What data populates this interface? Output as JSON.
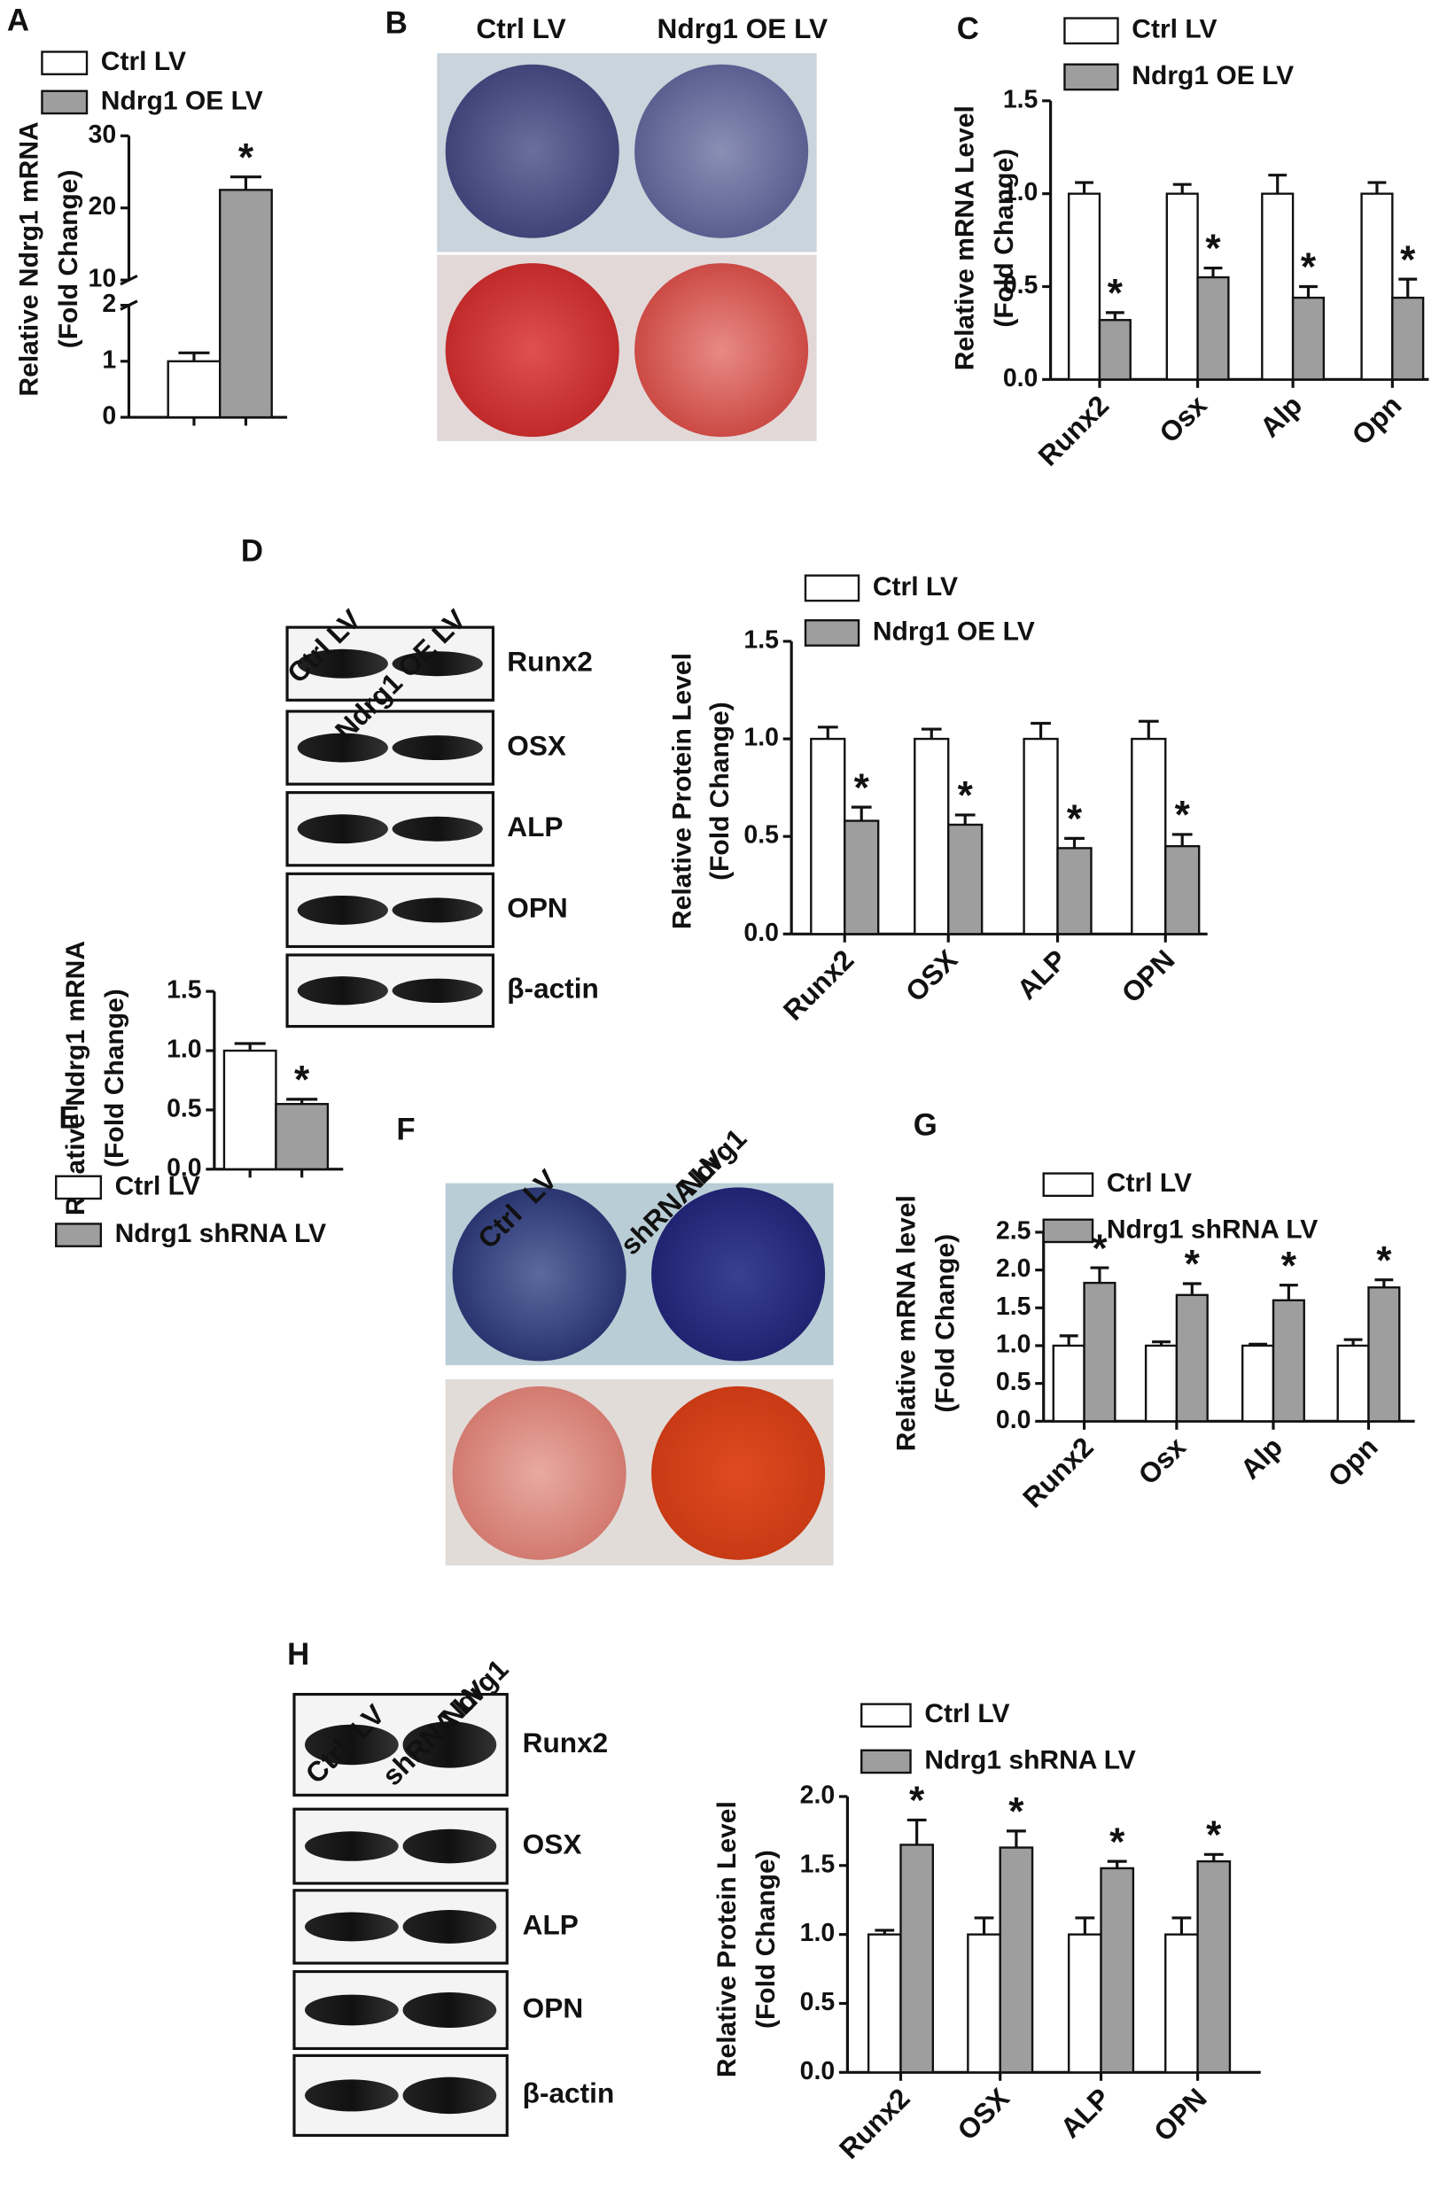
{
  "chart_data": [
    {
      "type": "bar",
      "panel": "A",
      "ylabel": [
        "Relative Ndrg1 mRNA",
        "(Fold Change)"
      ],
      "ylim": [
        0,
        30
      ],
      "axis_break": [
        2,
        10
      ],
      "yticks": [
        0,
        1,
        2,
        10,
        20,
        30
      ],
      "categories": [
        null
      ],
      "series": [
        {
          "name": "Ctrl LV",
          "color": "#ffffff",
          "values": [
            1.0
          ],
          "errors": [
            0.15
          ]
        },
        {
          "name": "Ndrg1 OE LV",
          "color": "#9e9e9e",
          "values": [
            22.5
          ],
          "errors": [
            1.8
          ],
          "markers": [
            "*"
          ]
        }
      ]
    },
    {
      "type": "bar",
      "panel": "C",
      "ylabel": [
        "Relative mRNA Level",
        "(Fold Change)"
      ],
      "ylim": [
        0,
        1.5
      ],
      "yticks": [
        {
          "value": 0,
          "label": "0.0"
        },
        0.5,
        {
          "value": 1,
          "label": "1.0"
        },
        1.5
      ],
      "categories": [
        "Runx2",
        "Osx",
        "Alp",
        "Opn"
      ],
      "series": [
        {
          "name": "Ctrl LV",
          "color": "#ffffff",
          "values": [
            1.0,
            1.0,
            1.0,
            1.0
          ],
          "errors": [
            0.06,
            0.05,
            0.1,
            0.06
          ]
        },
        {
          "name": "Ndrg1 OE LV",
          "color": "#9e9e9e",
          "values": [
            0.32,
            0.55,
            0.44,
            0.44
          ],
          "errors": [
            0.04,
            0.05,
            0.06,
            0.1
          ],
          "markers": [
            "*",
            "*",
            "*",
            "*"
          ]
        }
      ]
    },
    {
      "type": "bar",
      "ylabel": [
        "Relative Protein Level",
        "(Fold Change)"
      ],
      "ylim": [
        0,
        1.5
      ],
      "yticks": [
        {
          "value": 0,
          "label": "0.0"
        },
        0.5,
        {
          "value": 1,
          "label": "1.0"
        },
        1.5
      ],
      "categories": [
        "Runx2",
        "OSX",
        "ALP",
        "OPN"
      ],
      "series": [
        {
          "name": "Ctrl LV",
          "color": "#ffffff",
          "values": [
            1.0,
            1.0,
            1.0,
            1.0
          ],
          "errors": [
            0.06,
            0.05,
            0.08,
            0.09
          ]
        },
        {
          "name": "Ndrg1 OE LV",
          "color": "#9e9e9e",
          "values": [
            0.58,
            0.56,
            0.44,
            0.45
          ],
          "errors": [
            0.07,
            0.05,
            0.05,
            0.06
          ],
          "markers": [
            "*",
            "*",
            "*",
            "*"
          ]
        }
      ]
    },
    {
      "type": "bar",
      "panel": "E",
      "ylabel": [
        "Relative Ndrg1 mRNA",
        "(Fold Change)"
      ],
      "ylim": [
        0,
        1.5
      ],
      "yticks": [
        {
          "value": 0,
          "label": "0.0"
        },
        0.5,
        {
          "value": 1,
          "label": "1.0"
        },
        1.5
      ],
      "categories": [
        null
      ],
      "series": [
        {
          "name": "Ctrl LV",
          "color": "#ffffff",
          "values": [
            1.0
          ],
          "errors": [
            0.06
          ]
        },
        {
          "name": "Ndrg1 shRNA LV",
          "color": "#9e9e9e",
          "values": [
            0.55
          ],
          "errors": [
            0.04
          ],
          "markers": [
            "*"
          ]
        }
      ]
    },
    {
      "type": "bar",
      "panel": "G",
      "ylabel": [
        "Relative mRNA level",
        "(Fold Change)"
      ],
      "ylim": [
        0,
        2.5
      ],
      "yticks": [
        {
          "value": 0,
          "label": "0.0"
        },
        0.5,
        {
          "value": 1,
          "label": "1.0"
        },
        1.5,
        {
          "value": 2,
          "label": "2.0"
        },
        2.5
      ],
      "categories": [
        "Runx2",
        "Osx",
        "Alp",
        "Opn"
      ],
      "series": [
        {
          "name": "Ctrl LV",
          "color": "#ffffff",
          "values": [
            1.0,
            1.0,
            1.0,
            1.0
          ],
          "errors": [
            0.13,
            0.05,
            0.02,
            0.08
          ]
        },
        {
          "name": "Ndrg1 shRNA LV",
          "color": "#9e9e9e",
          "values": [
            1.83,
            1.67,
            1.6,
            1.77
          ],
          "errors": [
            0.2,
            0.15,
            0.2,
            0.1
          ],
          "markers": [
            "*",
            "*",
            "*",
            "*"
          ]
        }
      ]
    },
    {
      "type": "bar",
      "ylabel": [
        "Relative Protein Level",
        "(Fold Change)"
      ],
      "ylim": [
        0,
        2
      ],
      "yticks": [
        {
          "value": 0,
          "label": "0.0"
        },
        0.5,
        {
          "value": 1,
          "label": "1.0"
        },
        1.5,
        {
          "value": 2,
          "label": "2.0"
        }
      ],
      "categories": [
        "Runx2",
        "OSX",
        "ALP",
        "OPN"
      ],
      "series": [
        {
          "name": "Ctrl LV",
          "color": "#ffffff",
          "values": [
            1.0,
            1.0,
            1.0,
            1.0
          ],
          "errors": [
            0.03,
            0.12,
            0.12,
            0.12
          ]
        },
        {
          "name": "Ndrg1 shRNA LV",
          "color": "#9e9e9e",
          "values": [
            1.65,
            1.63,
            1.48,
            1.53
          ],
          "errors": [
            0.18,
            0.12,
            0.05,
            0.05
          ],
          "markers": [
            "*",
            "*",
            "*",
            "*"
          ]
        }
      ]
    }
  ],
  "images": [
    {
      "label": "B",
      "columns": [
        [
          "Ctrl LV"
        ],
        [
          "Ndrg1 OE LV"
        ]
      ]
    },
    {
      "label": "D",
      "columns": [
        [
          "Ctrl LV"
        ],
        [
          "Ndrg1 OE LV"
        ]
      ],
      "rows": [
        "Runx2",
        "OSX",
        "ALP",
        "OPN",
        "β-actin"
      ]
    },
    {
      "label": "F",
      "columns": [
        [
          "Ctrl  LV"
        ],
        [
          "Ndrg1",
          "shRNA LV"
        ]
      ]
    },
    {
      "label": "H",
      "columns": [
        [
          "Ctrl  LV"
        ],
        [
          "Ndrg1",
          "shRNA LV"
        ]
      ],
      "rows": [
        "Runx2",
        "OSX",
        "ALP",
        "OPN",
        "β-actin"
      ]
    }
  ]
}
